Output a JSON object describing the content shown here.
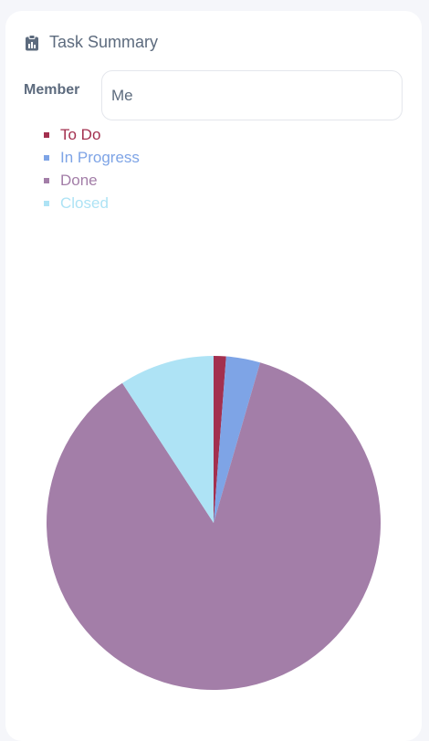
{
  "header": {
    "title": "Task Summary",
    "icon": "clipboard-chart-icon"
  },
  "member": {
    "label": "Member",
    "value": "Me"
  },
  "chart_data": {
    "type": "pie",
    "title": "",
    "categories": [
      "To Do",
      "In Progress",
      "Done",
      "Closed"
    ],
    "values": [
      1.2,
      3.3,
      86.3,
      9.2
    ],
    "colors": [
      "#a3304f",
      "#7ea4e6",
      "#a37ea8",
      "#aee3f5"
    ],
    "legend_position": "top-left"
  }
}
